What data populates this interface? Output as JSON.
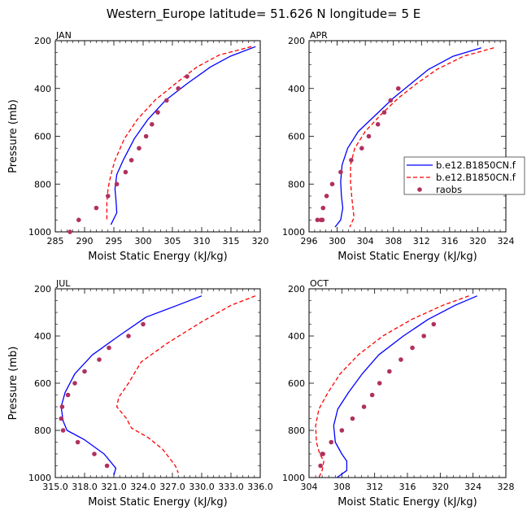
{
  "title": "Western_Europe  latitude= 51.626 N longitude= 5 E",
  "colors": {
    "model1": "#0000ff",
    "model2": "#ff0000",
    "raobs": "#b03060"
  },
  "legend": {
    "entries": [
      {
        "label": "b.e12.B1850CN.f",
        "style": "solid",
        "color": "#0000ff"
      },
      {
        "label": "b.e12.B1850CN.f",
        "style": "dashed",
        "color": "#ff0000"
      },
      {
        "label": "raobs",
        "style": "marker",
        "color": "#b03060"
      }
    ]
  },
  "chart_data": [
    {
      "type": "line",
      "panel": "JAN",
      "xlabel": "Moist Static Energy (kJ/kg)",
      "ylabel": "Pressure (mb)",
      "xlim": [
        285,
        320
      ],
      "ylim": [
        1000,
        200
      ],
      "xticks": [
        "285",
        "290",
        "295",
        "300",
        "305",
        "310",
        "315",
        "320"
      ],
      "xtick_values": [
        285,
        290,
        295,
        300,
        305,
        310,
        315,
        320
      ],
      "yticks": [
        "200",
        "400",
        "600",
        "800",
        "1000"
      ],
      "ytick_values": [
        200,
        400,
        600,
        800,
        1000
      ],
      "series": [
        {
          "name": "b.e12.B1850CN.f",
          "style": "solid",
          "color": "#0000ff",
          "x": [
            319.2,
            314.9,
            311.5,
            307.5,
            303.8,
            300.8,
            298.5,
            296.6,
            295.5,
            295.2,
            295.4,
            295.5,
            294.5
          ],
          "y": [
            225,
            265,
            310,
            380,
            450,
            530,
            610,
            700,
            760,
            820,
            880,
            920,
            970
          ]
        },
        {
          "name": "b.e12.B1850CN.f",
          "style": "dashed",
          "color": "#ff0000",
          "x": [
            318.5,
            313.0,
            309.2,
            305.5,
            302.0,
            299.0,
            296.8,
            295.2,
            294.5,
            294.0,
            293.8,
            293.8
          ],
          "y": [
            225,
            260,
            310,
            380,
            450,
            530,
            610,
            700,
            760,
            820,
            880,
            950
          ]
        },
        {
          "name": "raobs",
          "style": "marker",
          "color": "#b03060",
          "x": [
            307.5,
            306.0,
            304.0,
            302.5,
            301.5,
            300.5,
            299.3,
            298.0,
            297.0,
            295.5,
            294.0,
            292.0,
            289.0,
            287.5
          ],
          "y": [
            350,
            400,
            450,
            500,
            550,
            600,
            650,
            700,
            750,
            800,
            850,
            900,
            950,
            1000
          ]
        }
      ]
    },
    {
      "type": "line",
      "panel": "APR",
      "xlabel": "Moist Static Energy (kJ/kg)",
      "ylabel": "",
      "xlim": [
        296,
        324
      ],
      "ylim": [
        1000,
        200
      ],
      "xticks": [
        "296",
        "300",
        "304",
        "308",
        "312",
        "316",
        "320",
        "324"
      ],
      "xtick_values": [
        296,
        300,
        304,
        308,
        312,
        316,
        320,
        324
      ],
      "yticks": [
        "200",
        "400",
        "600",
        "800",
        "1000"
      ],
      "ytick_values": [
        200,
        400,
        600,
        800,
        1000
      ],
      "series": [
        {
          "name": "b.e12.B1850CN.f",
          "style": "solid",
          "color": "#0000ff",
          "x": [
            320.5,
            316.5,
            313.0,
            310.5,
            308.0,
            305.5,
            303.0,
            301.5,
            300.7,
            300.5,
            300.6,
            300.8,
            300.5,
            299.7
          ],
          "y": [
            230,
            265,
            320,
            380,
            440,
            510,
            580,
            650,
            720,
            790,
            850,
            900,
            950,
            980
          ]
        },
        {
          "name": "b.e12.B1850CN.f",
          "style": "dashed",
          "color": "#ff0000",
          "x": [
            322.3,
            318.0,
            314.2,
            311.3,
            308.7,
            306.2,
            304.0,
            302.5,
            301.9,
            301.9,
            302.1,
            302.4,
            301.8
          ],
          "y": [
            230,
            265,
            320,
            380,
            440,
            510,
            580,
            650,
            720,
            790,
            860,
            940,
            980
          ]
        },
        {
          "name": "raobs",
          "style": "marker",
          "color": "#b03060",
          "x": [
            308.7,
            307.6,
            306.7,
            305.8,
            304.5,
            303.5,
            302.0,
            300.5,
            299.3,
            298.5,
            298.0,
            297.9,
            297.7,
            297.2
          ],
          "y": [
            400,
            450,
            500,
            550,
            600,
            650,
            700,
            750,
            800,
            850,
            900,
            950,
            950,
            950
          ]
        }
      ]
    },
    {
      "type": "line",
      "panel": "JUL",
      "xlabel": "Moist Static Energy (kJ/kg)",
      "ylabel": "Pressure (mb)",
      "xlim": [
        315.0,
        336.0
      ],
      "ylim": [
        1000,
        200
      ],
      "xticks": [
        "315.0",
        "318.0",
        "321.0",
        "324.0",
        "327.0",
        "330.0",
        "333.0",
        "336.0"
      ],
      "xtick_values": [
        315,
        318,
        321,
        324,
        327,
        330,
        333,
        336
      ],
      "yticks": [
        "200",
        "400",
        "600",
        "800",
        "1000"
      ],
      "ytick_values": [
        200,
        400,
        600,
        800,
        1000
      ],
      "series": [
        {
          "name": "b.e12.B1850CN.f",
          "style": "solid",
          "color": "#0000ff",
          "x": [
            330.0,
            327.5,
            324.3,
            321.5,
            318.8,
            317.0,
            316.0,
            315.6,
            315.8,
            316.2,
            318.0,
            320.0,
            321.2,
            321.0
          ],
          "y": [
            230,
            270,
            320,
            400,
            480,
            560,
            640,
            700,
            760,
            800,
            840,
            900,
            960,
            990
          ]
        },
        {
          "name": "b.e12.B1850CN.f",
          "style": "dashed",
          "color": "#ff0000",
          "x": [
            335.5,
            333.0,
            330.0,
            326.5,
            323.8,
            322.5,
            321.5,
            321.3,
            322.3,
            322.8,
            324.5,
            326.0,
            327.3,
            327.6
          ],
          "y": [
            230,
            270,
            340,
            430,
            510,
            600,
            660,
            700,
            750,
            790,
            830,
            880,
            950,
            980
          ]
        },
        {
          "name": "raobs",
          "style": "marker",
          "color": "#b03060",
          "x": [
            324.0,
            322.5,
            320.5,
            319.5,
            318.0,
            317.0,
            316.3,
            315.7,
            315.6,
            315.8,
            317.3,
            319.0,
            320.3
          ],
          "y": [
            350,
            400,
            450,
            500,
            550,
            600,
            650,
            700,
            750,
            800,
            850,
            900,
            950
          ]
        }
      ]
    },
    {
      "type": "line",
      "panel": "OCT",
      "xlabel": "Moist Static Energy (kJ/kg)",
      "ylabel": "",
      "xlim": [
        304,
        328
      ],
      "ylim": [
        1000,
        200
      ],
      "xticks": [
        "304",
        "308",
        "312",
        "316",
        "320",
        "324",
        "328"
      ],
      "xtick_values": [
        304,
        308,
        312,
        316,
        320,
        324,
        328
      ],
      "yticks": [
        "200",
        "400",
        "600",
        "800",
        "1000"
      ],
      "ytick_values": [
        200,
        400,
        600,
        800,
        1000
      ],
      "series": [
        {
          "name": "b.e12.B1850CN.f",
          "style": "solid",
          "color": "#0000ff",
          "x": [
            324.5,
            321.8,
            318.5,
            315.5,
            312.5,
            310.5,
            308.8,
            307.5,
            307.0,
            307.2,
            308.0,
            308.6,
            308.6,
            307.4
          ],
          "y": [
            230,
            270,
            330,
            400,
            480,
            560,
            640,
            710,
            780,
            850,
            900,
            930,
            970,
            1000
          ]
        },
        {
          "name": "b.e12.B1850CN.f",
          "style": "dashed",
          "color": "#ff0000",
          "x": [
            323.5,
            320.3,
            316.5,
            313.0,
            310.0,
            307.8,
            306.3,
            305.2,
            304.8,
            304.9,
            305.3,
            305.8,
            305.6,
            305.2
          ],
          "y": [
            230,
            270,
            330,
            400,
            480,
            560,
            640,
            710,
            780,
            850,
            900,
            930,
            970,
            1000
          ]
        },
        {
          "name": "raobs",
          "style": "marker",
          "color": "#b03060",
          "x": [
            319.2,
            318.0,
            316.6,
            315.2,
            313.8,
            312.6,
            311.7,
            310.7,
            309.3,
            308.0,
            306.7,
            305.6,
            305.7,
            305.4
          ],
          "y": [
            350,
            400,
            450,
            500,
            550,
            600,
            650,
            700,
            750,
            800,
            850,
            900,
            900,
            950
          ]
        }
      ]
    }
  ]
}
